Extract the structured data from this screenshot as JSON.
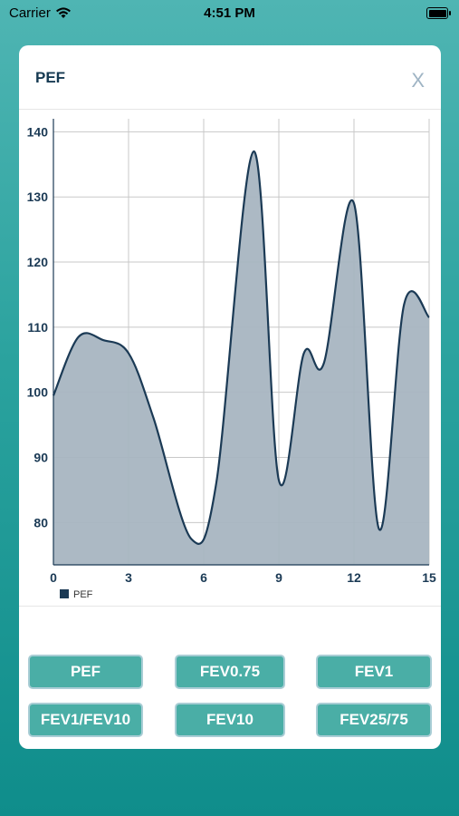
{
  "status": {
    "carrier": "Carrier",
    "time": "4:51 PM"
  },
  "modal": {
    "title": "PEF",
    "close_label": "X"
  },
  "chart_data": {
    "type": "area",
    "title": "",
    "xlabel": "",
    "ylabel": "",
    "x": [
      0,
      1,
      2,
      3,
      4,
      5.5,
      6.5,
      8,
      9,
      10,
      10.8,
      12,
      13,
      14,
      15
    ],
    "series": [
      {
        "name": "PEF",
        "values": [
          99.5,
          108.5,
          108,
          106,
          96,
          77.5,
          86,
          137,
          86.5,
          106,
          104.5,
          129,
          79,
          113.5,
          111.5
        ]
      }
    ],
    "xlim": [
      0,
      15
    ],
    "ylim": [
      73.5,
      142
    ],
    "xticks": [
      0,
      3,
      6,
      9,
      12,
      15
    ],
    "yticks": [
      80,
      90,
      100,
      110,
      120,
      130,
      140
    ],
    "grid": true,
    "legend": "bottom-left",
    "colors": {
      "line": "#1b3a55",
      "fill": "#a8b5c1",
      "grid": "#c8c8c8",
      "axis": "#1b3a55"
    }
  },
  "buttons": [
    {
      "label": "PEF"
    },
    {
      "label": "FEV0.75"
    },
    {
      "label": "FEV1"
    },
    {
      "label": "FEV1/FEV10"
    },
    {
      "label": "FEV10"
    },
    {
      "label": "FEV25/75"
    }
  ]
}
